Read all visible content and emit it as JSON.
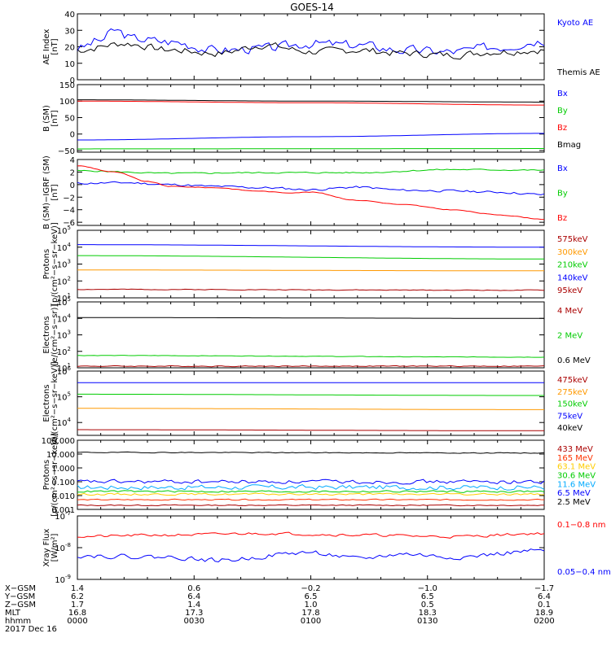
{
  "title": "GOES-14",
  "chart_data": [
    {
      "type": "line",
      "id": "ae",
      "ylabel": [
        "AE Index",
        "[nT]"
      ],
      "yscale": "linear",
      "ylim": [
        0,
        40
      ],
      "ticks": [
        0,
        10,
        20,
        30,
        40
      ],
      "tick_labels": [
        "0",
        "10",
        "20",
        "30",
        "40"
      ],
      "series": [
        {
          "name": "Kyoto AE",
          "color": "#0000ff",
          "gen": "noise",
          "base": 21,
          "amp": 4,
          "seed": 3,
          "knots": [
            [
              0,
              19
            ],
            [
              0.05,
              24
            ],
            [
              0.08,
              30
            ],
            [
              0.12,
              25
            ],
            [
              0.2,
              23
            ],
            [
              0.3,
              18
            ],
            [
              0.4,
              19
            ],
            [
              0.5,
              22
            ],
            [
              0.6,
              21
            ],
            [
              0.7,
              18
            ],
            [
              0.8,
              17
            ],
            [
              0.9,
              20
            ],
            [
              1,
              24
            ]
          ]
        },
        {
          "name": "Themis AE",
          "color": "#000000",
          "gen": "noise",
          "base": 18,
          "amp": 3,
          "seed": 7,
          "knots": [
            [
              0,
              18
            ],
            [
              0.1,
              22
            ],
            [
              0.2,
              18
            ],
            [
              0.3,
              16
            ],
            [
              0.4,
              21
            ],
            [
              0.5,
              17
            ],
            [
              0.6,
              18
            ],
            [
              0.7,
              16
            ],
            [
              0.8,
              15
            ],
            [
              0.9,
              17
            ],
            [
              1,
              18
            ]
          ]
        }
      ]
    },
    {
      "type": "line",
      "id": "b_sm",
      "ylabel": [
        "B (SM)",
        "[nT]"
      ],
      "yscale": "linear",
      "ylim": [
        -55,
        150
      ],
      "ticks": [
        -50,
        0,
        50,
        100,
        150
      ],
      "tick_labels": [
        "−50",
        "0",
        "50",
        "100",
        "150"
      ],
      "series": [
        {
          "name": "Bx",
          "color": "#0000ff",
          "gen": "smooth",
          "knots": [
            [
              0,
              -18
            ],
            [
              0.5,
              -8
            ],
            [
              1,
              2
            ]
          ]
        },
        {
          "name": "By",
          "color": "#00cc00",
          "gen": "smooth",
          "knots": [
            [
              0,
              -45
            ],
            [
              1,
              -44
            ]
          ]
        },
        {
          "name": "Bz",
          "color": "#ff0000",
          "gen": "smooth",
          "knots": [
            [
              0,
              100
            ],
            [
              0.5,
              95
            ],
            [
              1,
              88
            ]
          ]
        },
        {
          "name": "Bmag",
          "color": "#000000",
          "gen": "smooth",
          "knots": [
            [
              0,
              104
            ],
            [
              0.5,
              100
            ],
            [
              1,
              97
            ]
          ]
        }
      ]
    },
    {
      "type": "line",
      "id": "b_minus_igrf",
      "ylabel": [
        "B (SM)−IGRF (SM)",
        "[nT]"
      ],
      "yscale": "linear",
      "ylim": [
        -6.5,
        4
      ],
      "ticks": [
        -6,
        -4,
        -2,
        0,
        2,
        4
      ],
      "tick_labels": [
        "−6",
        "−4",
        "−2",
        "0",
        "2",
        "4"
      ],
      "series": [
        {
          "name": "Bx",
          "color": "#0000ff",
          "gen": "noise",
          "amp": 0.25,
          "seed": 11,
          "knots": [
            [
              0,
              0.2
            ],
            [
              0.1,
              0.3
            ],
            [
              0.2,
              0
            ],
            [
              0.3,
              -0.3
            ],
            [
              0.4,
              -0.5
            ],
            [
              0.5,
              -0.8
            ],
            [
              0.6,
              -0.4
            ],
            [
              0.7,
              -0.9
            ],
            [
              0.8,
              -1
            ],
            [
              0.9,
              -1.2
            ],
            [
              1,
              -1.6
            ]
          ]
        },
        {
          "name": "By",
          "color": "#00cc00",
          "gen": "noise",
          "amp": 0.15,
          "seed": 5,
          "knots": [
            [
              0,
              2.2
            ],
            [
              0.2,
              1.8
            ],
            [
              0.4,
              1.9
            ],
            [
              0.6,
              1.9
            ],
            [
              0.8,
              2.4
            ],
            [
              1,
              2.3
            ]
          ]
        },
        {
          "name": "Bz",
          "color": "#ff0000",
          "gen": "noise",
          "amp": 0.08,
          "seed": 9,
          "knots": [
            [
              0,
              3
            ],
            [
              0.08,
              2
            ],
            [
              0.15,
              0.5
            ],
            [
              0.2,
              -0.3
            ],
            [
              0.3,
              -0.5
            ],
            [
              0.38,
              -1
            ],
            [
              0.45,
              -1.3
            ],
            [
              0.5,
              -1.2
            ],
            [
              0.6,
              -2.5
            ],
            [
              0.7,
              -3.2
            ],
            [
              0.8,
              -4
            ],
            [
              0.9,
              -4.8
            ],
            [
              1,
              -5.5
            ]
          ]
        }
      ]
    },
    {
      "type": "line",
      "id": "protons_low",
      "ylabel": [
        "Protons",
        "[p/(cm²−s−sr−keV)]"
      ],
      "yscale": "log",
      "ylim": [
        1,
        5
      ],
      "ticks": [
        1,
        2,
        3,
        4,
        5
      ],
      "series": [
        {
          "name": "575keV",
          "color": "#aa0000",
          "gen": "smooth",
          "knots": [
            [
              0,
              1.5
            ],
            [
              1,
              1.45
            ]
          ],
          "amp": 0.03,
          "seed": 2
        },
        {
          "name": "300keV",
          "color": "#ff9900",
          "gen": "smooth",
          "knots": [
            [
              0,
              2.65
            ],
            [
              1,
              2.6
            ]
          ]
        },
        {
          "name": "210keV",
          "color": "#00cc00",
          "gen": "smooth",
          "knots": [
            [
              0,
              3.5
            ],
            [
              1,
              3.3
            ]
          ]
        },
        {
          "name": "140keV",
          "color": "#0000ff",
          "gen": "smooth",
          "knots": [
            [
              0,
              4.15
            ],
            [
              1,
              4.0
            ]
          ]
        },
        {
          "name": "95keV",
          "color": "#aa0000",
          "gen": "none"
        }
      ]
    },
    {
      "type": "line",
      "id": "electrons_mev",
      "ylabel": [
        "Electrons",
        "[e/(cm²−s−sr)]"
      ],
      "yscale": "log",
      "ylim": [
        1,
        5
      ],
      "ticks": [
        1,
        2,
        3,
        4,
        5
      ],
      "series": [
        {
          "name": "4 MeV",
          "color": "#aa0000",
          "gen": "noise",
          "amp": 0.04,
          "seed": 4,
          "knots": [
            [
              0,
              1.1
            ],
            [
              1,
              1.1
            ]
          ]
        },
        {
          "name": "2 MeV",
          "color": "#00cc00",
          "gen": "noise",
          "amp": 0.02,
          "seed": 6,
          "knots": [
            [
              0,
              1.75
            ],
            [
              1,
              1.65
            ]
          ]
        },
        {
          "name": "0.6 MeV",
          "color": "#000000",
          "gen": "smooth",
          "knots": [
            [
              0,
              4.05
            ],
            [
              1,
              4.0
            ]
          ]
        }
      ]
    },
    {
      "type": "line",
      "id": "electrons_kev",
      "ylabel": [
        "Electrons",
        "[e/(cm²−s−sr−keV)]"
      ],
      "yscale": "log",
      "ylim": [
        3.5,
        6
      ],
      "ticks": [
        4,
        5,
        6
      ],
      "series": [
        {
          "name": "475keV",
          "color": "#aa0000",
          "gen": "smooth",
          "knots": [
            [
              0,
              3.72
            ],
            [
              1,
              3.68
            ]
          ]
        },
        {
          "name": "275keV",
          "color": "#ff9900",
          "gen": "smooth",
          "knots": [
            [
              0,
              4.55
            ],
            [
              1,
              4.5
            ]
          ]
        },
        {
          "name": "150keV",
          "color": "#00cc00",
          "gen": "smooth",
          "knots": [
            [
              0,
              5.1
            ],
            [
              1,
              5.05
            ]
          ]
        },
        {
          "name": "75keV",
          "color": "#0000ff",
          "gen": "smooth",
          "knots": [
            [
              0,
              5.55
            ],
            [
              1,
              5.55
            ]
          ]
        },
        {
          "name": "40keV",
          "color": "#000000",
          "gen": "none"
        }
      ]
    },
    {
      "type": "line",
      "id": "protons_mev",
      "ylabel": [
        "Protons",
        "[p/(cm²−s−sr−keV)]"
      ],
      "yscale": "log",
      "ylim": [
        -3,
        2
      ],
      "ticks": [
        -3,
        -2,
        -1,
        0,
        1,
        2
      ],
      "tick_labels": [
        "0.001",
        "0.010",
        "0.100",
        "1.000",
        "10.000",
        "100.000"
      ],
      "series": [
        {
          "name": "433 MeV",
          "color": "#aa0000",
          "gen": "noise",
          "amp": 0.05,
          "seed": 13,
          "knots": [
            [
              0,
              -2.7
            ],
            [
              1,
              -2.7
            ]
          ]
        },
        {
          "name": "165 MeV",
          "color": "#ff3300",
          "gen": "noise",
          "amp": 0.06,
          "seed": 14,
          "knots": [
            [
              0,
              -2.3
            ],
            [
              1,
              -2.3
            ]
          ]
        },
        {
          "name": "63.1 MeV",
          "color": "#ffcc00",
          "gen": "noise",
          "amp": 0.1,
          "seed": 15,
          "knots": [
            [
              0,
              -1.9
            ],
            [
              1,
              -1.9
            ]
          ]
        },
        {
          "name": "30.6 MeV",
          "color": "#00cc00",
          "gen": "noise",
          "amp": 0.1,
          "seed": 16,
          "knots": [
            [
              0,
              -1.7
            ],
            [
              1,
              -1.7
            ]
          ]
        },
        {
          "name": "11.6 MeV",
          "color": "#00aaff",
          "gen": "noise",
          "amp": 0.25,
          "seed": 17,
          "knots": [
            [
              0,
              -1.4
            ],
            [
              1,
              -1.4
            ]
          ]
        },
        {
          "name": "6.5 MeV",
          "color": "#0000ff",
          "gen": "noise",
          "amp": 0.2,
          "seed": 18,
          "knots": [
            [
              0,
              -1.0
            ],
            [
              1,
              -1.0
            ]
          ]
        },
        {
          "name": "2.5 MeV",
          "color": "#000000",
          "gen": "noise",
          "amp": 0.04,
          "seed": 19,
          "knots": [
            [
              0,
              1.12
            ],
            [
              1,
              1.08
            ]
          ]
        }
      ]
    },
    {
      "type": "line",
      "id": "xray",
      "ylabel": [
        "Xray Flux",
        "[W/m²]"
      ],
      "yscale": "log",
      "ylim": [
        -9,
        -7
      ],
      "ticks": [
        -9,
        -8,
        -7
      ],
      "series": [
        {
          "name": "0.1−0.8 nm",
          "color": "#ff0000",
          "gen": "noise",
          "amp": 0.06,
          "seed": 21,
          "knots": [
            [
              0,
              -7.65
            ],
            [
              0.2,
              -7.6
            ],
            [
              0.4,
              -7.55
            ],
            [
              0.6,
              -7.6
            ],
            [
              0.8,
              -7.65
            ],
            [
              1,
              -7.55
            ]
          ]
        },
        {
          "name": "0.05−0.4 nm",
          "color": "#0000ff",
          "gen": "noise",
          "amp": 0.1,
          "seed": 22,
          "knots": [
            [
              0,
              -8.25
            ],
            [
              0.2,
              -8.3
            ],
            [
              0.3,
              -8.4
            ],
            [
              0.5,
              -8.15
            ],
            [
              0.6,
              -8.35
            ],
            [
              0.7,
              -8.2
            ],
            [
              0.8,
              -8.3
            ],
            [
              1,
              -8.1
            ]
          ]
        }
      ]
    }
  ],
  "x_axis": {
    "positions": [
      0,
      0.25,
      0.5,
      0.75,
      1.0
    ],
    "rows": [
      {
        "label": "X−GSM",
        "values": [
          "1.4",
          "0.6",
          "−0.2",
          "−1.0",
          "−1.7"
        ]
      },
      {
        "label": "Y−GSM",
        "values": [
          "6.2",
          "6.4",
          "6.5",
          "6.5",
          "6.4"
        ]
      },
      {
        "label": "Z−GSM",
        "values": [
          "1.7",
          "1.4",
          "1.0",
          "0.5",
          "0.1"
        ]
      },
      {
        "label": "MLT",
        "values": [
          "16.8",
          "17.3",
          "17.8",
          "18.3",
          "18.9"
        ]
      },
      {
        "label": "hhmm",
        "values": [
          "0000",
          "0030",
          "0100",
          "0130",
          "0200"
        ]
      }
    ],
    "date": "2017 Dec 16"
  }
}
